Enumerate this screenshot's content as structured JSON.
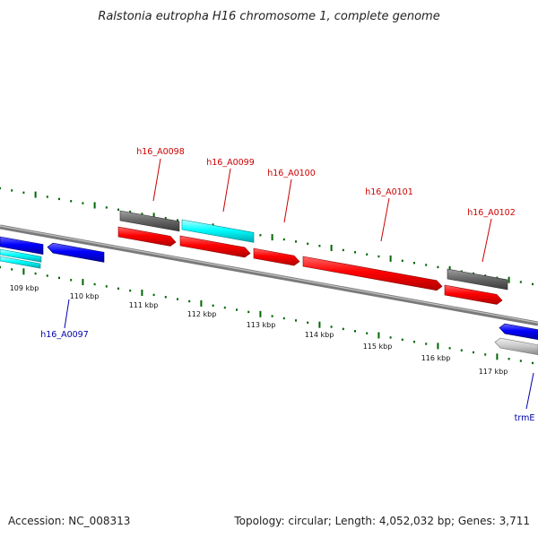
{
  "title": "Ralstonia eutropha H16 chromosome 1, complete genome",
  "footer": {
    "accession": "Accession: NC_008313",
    "summary": "Topology: circular; Length: 4,052,032 bp; Genes: 3,711"
  },
  "colors": {
    "forward_gene": "#ff0000",
    "reverse_gene": "#0000ff",
    "cyan_gene": "#00ffff",
    "dark_gray_gene": "#666666",
    "light_gray_gene": "#c8c8c8",
    "backbone": "#888888",
    "ticks": "#006600",
    "forward_label": "#cc0000",
    "reverse_label": "#0000aa"
  },
  "ticks": [
    {
      "label": "109 kbp"
    },
    {
      "label": "110 kbp"
    },
    {
      "label": "111 kbp"
    },
    {
      "label": "112 kbp"
    },
    {
      "label": "113 kbp"
    },
    {
      "label": "114 kbp"
    },
    {
      "label": "115 kbp"
    },
    {
      "label": "116 kbp"
    },
    {
      "label": "117 kbp"
    }
  ],
  "gene_labels": [
    {
      "text": "h16_A0097",
      "strand": "reverse"
    },
    {
      "text": "h16_A0098",
      "strand": "forward"
    },
    {
      "text": "h16_A0099",
      "strand": "forward"
    },
    {
      "text": "h16_A0100",
      "strand": "forward"
    },
    {
      "text": "h16_A0101",
      "strand": "forward"
    },
    {
      "text": "h16_A0102",
      "strand": "forward"
    },
    {
      "text": "trmE",
      "strand": "reverse"
    }
  ]
}
